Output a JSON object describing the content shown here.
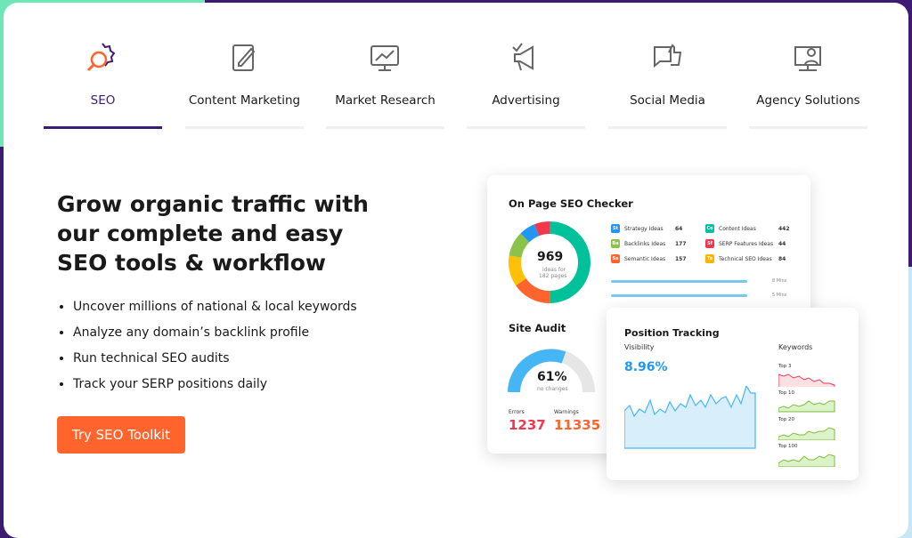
{
  "tabs": [
    "SEO",
    "Content Marketing",
    "Market Research",
    "Advertising",
    "Social Media",
    "Agency Solutions"
  ],
  "hero": {
    "title": "Grow organic traffic with our complete and easy SEO tools & workflow",
    "bullets": [
      "Uncover millions of national & local keywords",
      "Analyze any domain’s backlink profile",
      "Run technical SEO audits",
      "Track your SERP positions daily"
    ],
    "button": "Try SEO Toolkit"
  },
  "on_page": {
    "title": "On Page SEO Checker",
    "total": "969",
    "total_caption": "ideas for",
    "total_caption2": "182 pages",
    "legend": [
      {
        "code": "St",
        "label": "Strategy Ideas",
        "value": "64"
      },
      {
        "code": "Co",
        "label": "Content Ideas",
        "value": "442"
      },
      {
        "code": "Ba",
        "label": "Backlinks Ideas",
        "value": "177"
      },
      {
        "code": "Sf",
        "label": "SERP Features Ideas",
        "value": "44"
      },
      {
        "code": "Se",
        "label": "Semantic Ideas",
        "value": "157"
      },
      {
        "code": "Te",
        "label": "Technical SEO Ideas",
        "value": "84"
      }
    ],
    "bars": [
      "8 Mins",
      "5 Mins"
    ]
  },
  "site_audit": {
    "title": "Site Audit",
    "score": "61%",
    "score_caption": "no changes",
    "errors_label": "Errors",
    "errors": "1237",
    "warnings_label": "Warnings",
    "warnings": "11335"
  },
  "position": {
    "title": "Position Tracking",
    "visibility_label": "Visibility",
    "visibility": "8.96%",
    "keywords_label": "Keywords",
    "keywords": [
      "Top 3",
      "Top 10",
      "Top 20",
      "Top 100"
    ]
  }
}
